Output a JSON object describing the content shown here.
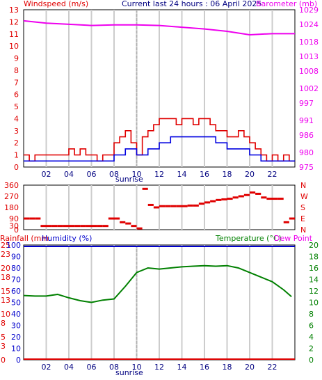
{
  "header": {
    "left": "Windspeed (m/s)",
    "center": "Current last 24 hours : 06 April 2025",
    "right": "Barometer (mb)"
  },
  "legend_bottom": {
    "rainfall": "Rainfall (mm",
    "humidity": "Humidity (%)",
    "temperature": "Temperature (°C)",
    "dewpoint": "Dew Point"
  },
  "sunrise_label": "sunrise",
  "colors": {
    "windspeed": "#e00000",
    "gust": "#ff0000",
    "avgwind": "#0000e0",
    "barometer": "#ee00ee",
    "direction": "#e00000",
    "humidity": "#0000cc",
    "temperature": "#008000",
    "rainfall": "#e00000",
    "grid": "#cccccc",
    "sunrise_line": "#b0b0b0"
  },
  "chart_data": [
    {
      "id": "wind",
      "type": "line",
      "x_ticks": [
        "02",
        "04",
        "06",
        "08",
        "10",
        "12",
        "14",
        "16",
        "18",
        "20",
        "22"
      ],
      "x_range_hours": [
        0,
        24
      ],
      "left_axis": {
        "label": "Windspeed (m/s)",
        "range": [
          0,
          13
        ],
        "ticks": [
          0,
          1,
          2,
          3,
          4,
          5,
          6,
          7,
          8,
          9,
          10,
          11,
          12,
          13
        ]
      },
      "right_axis": {
        "label": "Barometer (mb)",
        "range": [
          975,
          1029
        ],
        "ticks": [
          975,
          980,
          986,
          991,
          997,
          1002,
          1008,
          1013,
          1018,
          1024,
          1029
        ]
      },
      "sunrise_hour": 10,
      "series": [
        {
          "name": "Windspeed",
          "x": [
            0,
            0.5,
            1,
            1.5,
            2,
            2.5,
            3,
            3.5,
            4,
            4.5,
            5,
            5.5,
            6,
            6.5,
            7,
            7.5,
            8,
            8.5,
            9,
            9.5,
            10,
            10.5,
            11,
            11.5,
            12,
            12.5,
            13,
            13.5,
            14,
            14.5,
            15,
            15.5,
            16,
            16.5,
            17,
            17.5,
            18,
            18.5,
            19,
            19.5,
            20,
            20.5,
            21,
            21.5,
            22,
            22.5,
            23,
            23.5
          ],
          "values": [
            1,
            0.5,
            1,
            1,
            1,
            1,
            1,
            1,
            1.5,
            1,
            1.5,
            1,
            1,
            0.5,
            1,
            1,
            2,
            2.5,
            3,
            2,
            1,
            2.5,
            3,
            3.5,
            4,
            4,
            4,
            3.5,
            4,
            4,
            3.5,
            4,
            4,
            3.5,
            3,
            3,
            2.5,
            2.5,
            3,
            2.5,
            2,
            1.5,
            1,
            0.5,
            1,
            0.5,
            1,
            0.5
          ]
        },
        {
          "name": "Avg wind",
          "x": [
            0,
            1,
            2,
            3,
            4,
            5,
            6,
            7,
            8,
            9,
            10,
            11,
            12,
            13,
            14,
            15,
            16,
            17,
            18,
            19,
            20,
            21,
            22,
            23
          ],
          "values": [
            0.5,
            0.5,
            0.5,
            0.5,
            0.5,
            0.5,
            0.5,
            0.5,
            1,
            1.5,
            1,
            1.5,
            2,
            2.5,
            2.5,
            2.5,
            2.5,
            2,
            1.5,
            1.5,
            1,
            0.5,
            0.5,
            0.5
          ]
        },
        {
          "name": "Barometer",
          "axis": "right",
          "x": [
            0,
            2,
            4,
            6,
            8,
            10,
            12,
            14,
            16,
            18,
            20,
            22,
            24
          ],
          "values": [
            1025.2,
            1024.4,
            1024.0,
            1023.6,
            1023.8,
            1023.8,
            1023.6,
            1023.0,
            1022.4,
            1021.6,
            1020.4,
            1020.8,
            1020.8
          ]
        }
      ]
    },
    {
      "id": "direction",
      "type": "scatter",
      "x_ticks": [],
      "left_axis": {
        "range": [
          0,
          360
        ],
        "ticks": [
          0,
          30,
          90,
          180,
          270,
          360
        ]
      },
      "right_axis": {
        "ticks": [
          "N",
          "E",
          "S",
          "W",
          "N"
        ]
      },
      "series": [
        {
          "name": "Direction",
          "x": [
            0,
            0.5,
            1,
            1.5,
            2,
            2.5,
            3,
            3.5,
            4,
            4.5,
            5,
            5.5,
            6,
            6.5,
            7,
            7.5,
            8,
            8.5,
            9,
            9.5,
            10,
            10.5,
            11,
            11.5,
            12,
            12.5,
            13,
            13.5,
            14,
            14.5,
            15,
            15.5,
            16,
            16.5,
            17,
            17.5,
            18,
            18.5,
            19,
            19.5,
            20,
            20.5,
            21,
            21.5,
            22,
            22.5,
            23,
            23.5
          ],
          "values": [
            90,
            90,
            90,
            30,
            30,
            30,
            30,
            30,
            30,
            30,
            30,
            30,
            30,
            30,
            30,
            90,
            90,
            60,
            50,
            30,
            10,
            330,
            200,
            180,
            190,
            190,
            190,
            190,
            190,
            195,
            195,
            210,
            220,
            230,
            240,
            245,
            250,
            260,
            270,
            280,
            300,
            290,
            260,
            250,
            250,
            250,
            60,
            90
          ]
        }
      ]
    },
    {
      "id": "temp-humidity",
      "type": "line",
      "x_ticks": [
        "02",
        "04",
        "06",
        "08",
        "10",
        "12",
        "14",
        "16",
        "18",
        "20",
        "22"
      ],
      "left_axis_1": {
        "label": "Rainfall (mm",
        "range": [
          0,
          25
        ],
        "ticks": [
          0,
          3,
          5,
          8,
          10,
          13,
          15,
          18,
          20,
          23,
          25
        ]
      },
      "left_axis_2": {
        "label": "Humidity (%)",
        "range": [
          0,
          100
        ],
        "ticks": [
          0,
          10,
          20,
          30,
          40,
          50,
          60,
          70,
          80,
          90,
          100
        ]
      },
      "right_axis": {
        "label": "Temperature (°C)",
        "range": [
          0,
          20
        ],
        "ticks": [
          0,
          2,
          4,
          6,
          8,
          10,
          12,
          14,
          16,
          18,
          20
        ]
      },
      "sunrise_hour": 10,
      "series": [
        {
          "name": "Temperature",
          "axis": "right",
          "x": [
            0,
            1,
            2,
            3,
            4,
            5,
            6,
            7,
            8,
            9,
            10,
            11,
            12,
            13,
            14,
            15,
            16,
            17,
            18,
            19,
            20,
            21,
            22,
            23,
            23.7
          ],
          "values": [
            11.2,
            11.1,
            11.1,
            11.4,
            10.8,
            10.3,
            10.0,
            10.4,
            10.6,
            12.8,
            15.2,
            16.0,
            15.8,
            16.0,
            16.2,
            16.3,
            16.4,
            16.3,
            16.4,
            16.0,
            15.2,
            14.4,
            13.6,
            12.2,
            11.0
          ]
        },
        {
          "name": "Humidity",
          "axis": "humidity",
          "x": [
            0,
            24
          ],
          "values": [
            100,
            100
          ]
        },
        {
          "name": "Rainfall",
          "axis": "rain",
          "x": [
            0,
            24
          ],
          "values": [
            0,
            0
          ]
        }
      ]
    }
  ]
}
